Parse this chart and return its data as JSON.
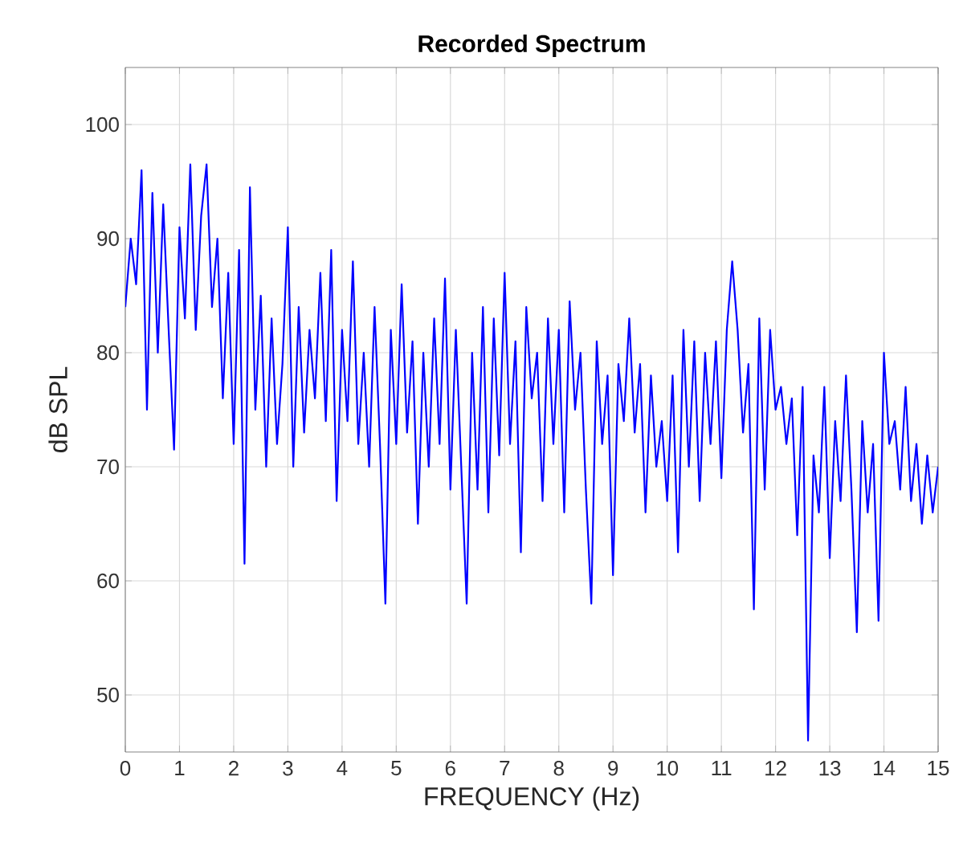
{
  "chart_data": {
    "type": "line",
    "title": "Recorded Spectrum",
    "xlabel": "FREQUENCY (Hz)",
    "ylabel": "dB SPL",
    "xlim": [
      0,
      15
    ],
    "ylim": [
      45,
      105
    ],
    "xticks": [
      0,
      1,
      2,
      3,
      4,
      5,
      6,
      7,
      8,
      9,
      10,
      11,
      12,
      13,
      14,
      15
    ],
    "yticks": [
      50,
      60,
      70,
      80,
      90,
      100
    ],
    "grid": true,
    "series": [
      {
        "color": "#0000ff",
        "x": [
          0.0,
          0.1,
          0.2,
          0.3,
          0.4,
          0.5,
          0.6,
          0.7,
          0.8,
          0.9,
          1.0,
          1.1,
          1.2,
          1.3,
          1.4,
          1.5,
          1.6,
          1.7,
          1.8,
          1.9,
          2.0,
          2.1,
          2.2,
          2.3,
          2.4,
          2.5,
          2.6,
          2.7,
          2.8,
          2.9,
          3.0,
          3.1,
          3.2,
          3.3,
          3.4,
          3.5,
          3.6,
          3.7,
          3.8,
          3.9,
          4.0,
          4.1,
          4.2,
          4.3,
          4.4,
          4.5,
          4.6,
          4.7,
          4.8,
          4.9,
          5.0,
          5.1,
          5.2,
          5.3,
          5.4,
          5.5,
          5.6,
          5.7,
          5.8,
          5.9,
          6.0,
          6.1,
          6.2,
          6.3,
          6.4,
          6.5,
          6.6,
          6.7,
          6.8,
          6.9,
          7.0,
          7.1,
          7.2,
          7.3,
          7.4,
          7.5,
          7.6,
          7.7,
          7.8,
          7.9,
          8.0,
          8.1,
          8.2,
          8.3,
          8.4,
          8.5,
          8.6,
          8.7,
          8.8,
          8.9,
          9.0,
          9.1,
          9.2,
          9.3,
          9.4,
          9.5,
          9.6,
          9.7,
          9.8,
          9.9,
          10.0,
          10.1,
          10.2,
          10.3,
          10.4,
          10.5,
          10.6,
          10.7,
          10.8,
          10.9,
          11.0,
          11.1,
          11.2,
          11.3,
          11.4,
          11.5,
          11.6,
          11.7,
          11.8,
          11.9,
          12.0,
          12.1,
          12.2,
          12.3,
          12.4,
          12.5,
          12.6,
          12.7,
          12.8,
          12.9,
          13.0,
          13.1,
          13.2,
          13.3,
          13.4,
          13.5,
          13.6,
          13.7,
          13.8,
          13.9,
          14.0,
          14.1,
          14.2,
          14.3,
          14.4,
          14.5,
          14.6,
          14.7,
          14.8,
          14.9,
          15.0
        ],
        "values": [
          84,
          90,
          86,
          96,
          75,
          94,
          80,
          93,
          82,
          71.5,
          91,
          83,
          96.5,
          82,
          92,
          96.5,
          84,
          90,
          76,
          87,
          72,
          89,
          61.5,
          94.5,
          75,
          85,
          70,
          83,
          72,
          79,
          91,
          70,
          84,
          73,
          82,
          76,
          87,
          74,
          89,
          67,
          82,
          74,
          88,
          72,
          80,
          70,
          84,
          72,
          58,
          82,
          72,
          86,
          73,
          81,
          65,
          80,
          70,
          83,
          72,
          86.5,
          68,
          82,
          70,
          58,
          80,
          68,
          84,
          66,
          83,
          71,
          87,
          72,
          81,
          62.5,
          84,
          76,
          80,
          67,
          83,
          72,
          82,
          66,
          84.5,
          75,
          80,
          68,
          58,
          81,
          72,
          78,
          60.5,
          79,
          74,
          83,
          73,
          79,
          66,
          78,
          70,
          74,
          67,
          78,
          62.5,
          82,
          70,
          81,
          67,
          80,
          72,
          81,
          69,
          82,
          88,
          82,
          73,
          79,
          57.5,
          83,
          68,
          82,
          75,
          77,
          72,
          76,
          64,
          77,
          46,
          71,
          66,
          77,
          62,
          74,
          67,
          78,
          68,
          55.5,
          74,
          66,
          72,
          56.5,
          80,
          72,
          74,
          68,
          77,
          67,
          72,
          65,
          71,
          66,
          70
        ]
      }
    ]
  }
}
